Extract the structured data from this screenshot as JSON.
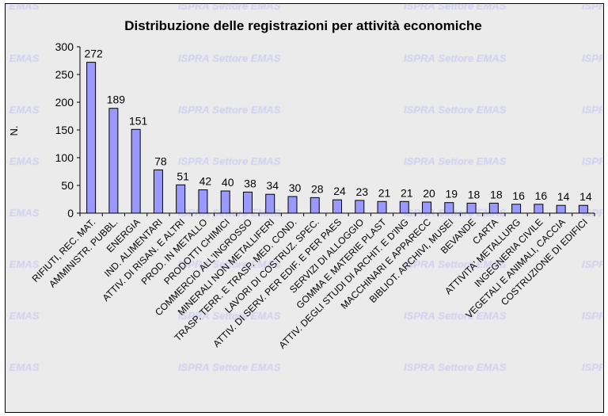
{
  "watermark": "ISPRA Settore EMAS",
  "colors": {
    "bar_fill": "#9999ff",
    "bar_stroke": "#000000",
    "background": "#ebebeb",
    "watermark": "#d0d0f0"
  },
  "chart_data": {
    "type": "bar",
    "title": "Distribuzione delle registrazioni per attività economiche",
    "xlabel": "",
    "ylabel": "N.",
    "ylim": [
      0,
      300
    ],
    "yticks": [
      0,
      50,
      100,
      150,
      200,
      250,
      300
    ],
    "grid": false,
    "data_labels": true,
    "categories": [
      "RIFIUTI, REC. MAT.",
      "AMMINISTR. PUBBL.",
      "ENERGIA",
      "IND. ALIMENTARI",
      "ATTIV. DI RISAN. E ALTRI",
      "PROD. IN METALLO",
      "PRODOTTI CHIMICI",
      "COMMERCIO ALL'INGROSSO",
      "MINERALI NON METALLIFERI",
      "TRASP. TERR. E TRASP. MED. COND.",
      "LAVORI DI COSTRUZ. SPEC.",
      "ATTIV. DI SERV. PER EDIF. E PER PAES",
      "SERVIZI DI ALLOGGIO",
      "GOMMA E MATERIE PLAST",
      "ATTIV. DEGLI STUDI DI ARCHIT. E D'ING",
      "MACCHINARI E APPARECC",
      "BIBLIOT. ARCHIVI, MUSEI",
      "BEVANDE",
      "CARTA",
      "ATTIVITA' METALLURG",
      "INGEGNERIA CIVILE",
      "VEGETALI E ANIMALI, CACCIA",
      "COSTRUZIONE DI EDIFICI"
    ],
    "values": [
      272,
      189,
      151,
      78,
      51,
      42,
      40,
      38,
      34,
      30,
      28,
      24,
      23,
      21,
      21,
      20,
      19,
      18,
      18,
      16,
      16,
      14,
      14
    ]
  }
}
